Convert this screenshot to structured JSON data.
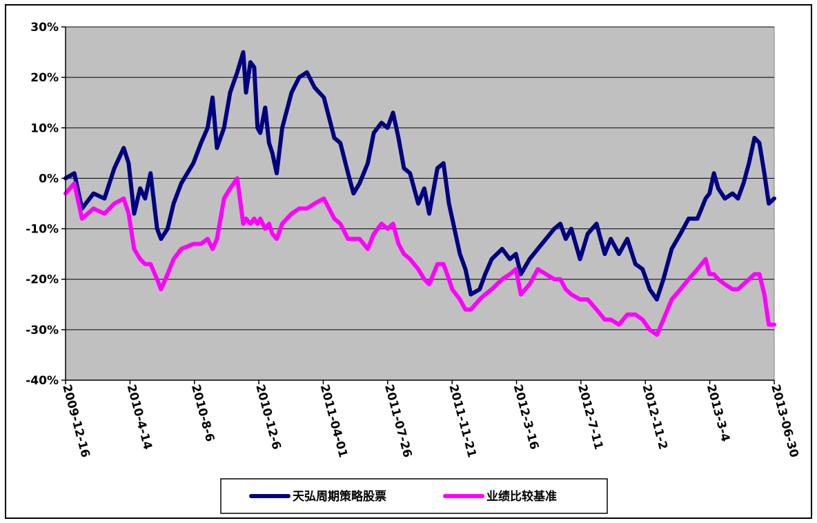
{
  "chart_data": {
    "type": "line",
    "title": "",
    "xlabel": "",
    "ylabel": "",
    "ylim": [
      -40,
      30
    ],
    "y_ticks": [
      "30%",
      "20%",
      "10%",
      "0%",
      "-10%",
      "-20%",
      "-30%",
      "-40%"
    ],
    "y_tick_values": [
      30,
      20,
      10,
      0,
      -10,
      -20,
      -30,
      -40
    ],
    "x_tick_labels": [
      "2009-12-16",
      "2010-4-14",
      "2010-8-6",
      "2010-12-6",
      "2011-04-01",
      "2011-07-26",
      "2011-11-21",
      "2012-3-16",
      "2012-7-11",
      "2012-11-2",
      "2013-3-4",
      "2013-06-30"
    ],
    "grid": "horizontal",
    "legend_position": "bottom",
    "plot_background": "#C0C0C0",
    "series": [
      {
        "name": "天弘周期策略股票",
        "color": "#000080",
        "points": [
          [
            "2009-12-16",
            0
          ],
          [
            "2010-01-01",
            1
          ],
          [
            "2010-01-15",
            -6
          ],
          [
            "2010-02-05",
            -3
          ],
          [
            "2010-02-25",
            -4
          ],
          [
            "2010-03-15",
            2
          ],
          [
            "2010-04-01",
            6
          ],
          [
            "2010-04-10",
            3
          ],
          [
            "2010-04-20",
            -7
          ],
          [
            "2010-05-01",
            -2
          ],
          [
            "2010-05-10",
            -4
          ],
          [
            "2010-05-20",
            1
          ],
          [
            "2010-06-01",
            -10
          ],
          [
            "2010-06-08",
            -12
          ],
          [
            "2010-06-20",
            -10
          ],
          [
            "2010-07-01",
            -5
          ],
          [
            "2010-07-15",
            -1
          ],
          [
            "2010-08-06",
            3
          ],
          [
            "2010-08-20",
            7
          ],
          [
            "2010-09-01",
            10
          ],
          [
            "2010-09-10",
            16
          ],
          [
            "2010-09-18",
            6
          ],
          [
            "2010-10-01",
            10
          ],
          [
            "2010-10-12",
            17
          ],
          [
            "2010-10-25",
            21
          ],
          [
            "2010-11-05",
            25
          ],
          [
            "2010-11-10",
            17
          ],
          [
            "2010-11-18",
            23
          ],
          [
            "2010-11-25",
            22
          ],
          [
            "2010-12-01",
            10
          ],
          [
            "2010-12-06",
            9
          ],
          [
            "2010-12-15",
            14
          ],
          [
            "2010-12-22",
            7
          ],
          [
            "2010-12-28",
            5
          ],
          [
            "2011-01-05",
            1
          ],
          [
            "2011-01-15",
            10
          ],
          [
            "2011-02-01",
            17
          ],
          [
            "2011-02-15",
            20
          ],
          [
            "2011-03-01",
            21
          ],
          [
            "2011-03-15",
            18
          ],
          [
            "2011-04-01",
            16
          ],
          [
            "2011-04-20",
            8
          ],
          [
            "2011-05-01",
            7
          ],
          [
            "2011-05-15",
            1
          ],
          [
            "2011-05-25",
            -3
          ],
          [
            "2011-06-05",
            -1
          ],
          [
            "2011-06-20",
            3
          ],
          [
            "2011-07-01",
            9
          ],
          [
            "2011-07-15",
            11
          ],
          [
            "2011-07-26",
            10
          ],
          [
            "2011-08-05",
            13
          ],
          [
            "2011-08-15",
            8
          ],
          [
            "2011-08-25",
            2
          ],
          [
            "2011-09-05",
            1
          ],
          [
            "2011-09-20",
            -5
          ],
          [
            "2011-10-01",
            -2
          ],
          [
            "2011-10-10",
            -7
          ],
          [
            "2011-10-25",
            2
          ],
          [
            "2011-11-05",
            3
          ],
          [
            "2011-11-15",
            -5
          ],
          [
            "2011-11-21",
            -8
          ],
          [
            "2011-12-05",
            -15
          ],
          [
            "2011-12-15",
            -18
          ],
          [
            "2011-12-25",
            -23
          ],
          [
            "2012-01-10",
            -22
          ],
          [
            "2012-01-20",
            -19
          ],
          [
            "2012-02-01",
            -16
          ],
          [
            "2012-02-20",
            -14
          ],
          [
            "2012-03-05",
            -16
          ],
          [
            "2012-03-16",
            -15
          ],
          [
            "2012-03-25",
            -19
          ],
          [
            "2012-04-10",
            -16
          ],
          [
            "2012-04-25",
            -14
          ],
          [
            "2012-05-10",
            -12
          ],
          [
            "2012-05-25",
            -10
          ],
          [
            "2012-06-05",
            -9
          ],
          [
            "2012-06-15",
            -12
          ],
          [
            "2012-06-25",
            -10
          ],
          [
            "2012-07-11",
            -16
          ],
          [
            "2012-07-25",
            -11
          ],
          [
            "2012-08-10",
            -9
          ],
          [
            "2012-08-25",
            -15
          ],
          [
            "2012-09-05",
            -12
          ],
          [
            "2012-09-20",
            -15
          ],
          [
            "2012-10-05",
            -12
          ],
          [
            "2012-10-20",
            -17
          ],
          [
            "2012-11-02",
            -18
          ],
          [
            "2012-11-15",
            -22
          ],
          [
            "2012-11-28",
            -24
          ],
          [
            "2012-12-10",
            -20
          ],
          [
            "2012-12-25",
            -14
          ],
          [
            "2013-01-10",
            -11
          ],
          [
            "2013-01-25",
            -8
          ],
          [
            "2013-02-10",
            -8
          ],
          [
            "2013-02-25",
            -4
          ],
          [
            "2013-03-04",
            -3
          ],
          [
            "2013-03-12",
            1
          ],
          [
            "2013-03-20",
            -2
          ],
          [
            "2013-04-01",
            -4
          ],
          [
            "2013-04-15",
            -3
          ],
          [
            "2013-04-25",
            -4
          ],
          [
            "2013-05-05",
            -1
          ],
          [
            "2013-05-15",
            3
          ],
          [
            "2013-05-25",
            8
          ],
          [
            "2013-06-03",
            7
          ],
          [
            "2013-06-12",
            1
          ],
          [
            "2013-06-20",
            -5
          ],
          [
            "2013-06-30",
            -4
          ]
        ]
      },
      {
        "name": "业绩比较基准",
        "color": "#FF00FF",
        "points": [
          [
            "2009-12-16",
            -3
          ],
          [
            "2010-01-01",
            -1
          ],
          [
            "2010-01-15",
            -8
          ],
          [
            "2010-02-05",
            -6
          ],
          [
            "2010-02-25",
            -7
          ],
          [
            "2010-03-15",
            -5
          ],
          [
            "2010-04-01",
            -4
          ],
          [
            "2010-04-10",
            -7
          ],
          [
            "2010-04-20",
            -14
          ],
          [
            "2010-05-01",
            -16
          ],
          [
            "2010-05-10",
            -17
          ],
          [
            "2010-05-20",
            -17
          ],
          [
            "2010-06-01",
            -20
          ],
          [
            "2010-06-08",
            -22
          ],
          [
            "2010-06-20",
            -19
          ],
          [
            "2010-07-01",
            -16
          ],
          [
            "2010-07-15",
            -14
          ],
          [
            "2010-08-06",
            -13
          ],
          [
            "2010-08-20",
            -13
          ],
          [
            "2010-09-01",
            -12
          ],
          [
            "2010-09-10",
            -14
          ],
          [
            "2010-09-18",
            -12
          ],
          [
            "2010-10-01",
            -4
          ],
          [
            "2010-10-12",
            -2
          ],
          [
            "2010-10-25",
            0
          ],
          [
            "2010-11-05",
            -9
          ],
          [
            "2010-11-10",
            -8
          ],
          [
            "2010-11-18",
            -9
          ],
          [
            "2010-11-25",
            -8
          ],
          [
            "2010-12-01",
            -9
          ],
          [
            "2010-12-06",
            -8
          ],
          [
            "2010-12-15",
            -10
          ],
          [
            "2010-12-22",
            -9
          ],
          [
            "2010-12-28",
            -11
          ],
          [
            "2011-01-05",
            -12
          ],
          [
            "2011-01-15",
            -9
          ],
          [
            "2011-02-01",
            -7
          ],
          [
            "2011-02-15",
            -6
          ],
          [
            "2011-03-01",
            -6
          ],
          [
            "2011-03-15",
            -5
          ],
          [
            "2011-04-01",
            -4
          ],
          [
            "2011-04-20",
            -8
          ],
          [
            "2011-05-01",
            -9
          ],
          [
            "2011-05-15",
            -12
          ],
          [
            "2011-05-25",
            -12
          ],
          [
            "2011-06-05",
            -12
          ],
          [
            "2011-06-20",
            -14
          ],
          [
            "2011-07-01",
            -11
          ],
          [
            "2011-07-15",
            -9
          ],
          [
            "2011-07-26",
            -10
          ],
          [
            "2011-08-05",
            -9
          ],
          [
            "2011-08-15",
            -13
          ],
          [
            "2011-08-25",
            -15
          ],
          [
            "2011-09-05",
            -16
          ],
          [
            "2011-09-20",
            -18
          ],
          [
            "2011-10-01",
            -20
          ],
          [
            "2011-10-10",
            -21
          ],
          [
            "2011-10-25",
            -17
          ],
          [
            "2011-11-05",
            -17
          ],
          [
            "2011-11-15",
            -20
          ],
          [
            "2011-11-21",
            -22
          ],
          [
            "2011-12-05",
            -24
          ],
          [
            "2011-12-15",
            -26
          ],
          [
            "2011-12-25",
            -26
          ],
          [
            "2012-01-10",
            -24
          ],
          [
            "2012-01-20",
            -23
          ],
          [
            "2012-02-01",
            -22
          ],
          [
            "2012-02-20",
            -20
          ],
          [
            "2012-03-05",
            -19
          ],
          [
            "2012-03-16",
            -18
          ],
          [
            "2012-03-25",
            -23
          ],
          [
            "2012-04-10",
            -21
          ],
          [
            "2012-04-25",
            -18
          ],
          [
            "2012-05-10",
            -19
          ],
          [
            "2012-05-25",
            -20
          ],
          [
            "2012-06-05",
            -20
          ],
          [
            "2012-06-15",
            -22
          ],
          [
            "2012-06-25",
            -23
          ],
          [
            "2012-07-11",
            -24
          ],
          [
            "2012-07-25",
            -24
          ],
          [
            "2012-08-10",
            -26
          ],
          [
            "2012-08-25",
            -28
          ],
          [
            "2012-09-05",
            -28
          ],
          [
            "2012-09-20",
            -29
          ],
          [
            "2012-10-05",
            -27
          ],
          [
            "2012-10-20",
            -27
          ],
          [
            "2012-11-02",
            -28
          ],
          [
            "2012-11-15",
            -30
          ],
          [
            "2012-11-28",
            -31
          ],
          [
            "2012-12-10",
            -28
          ],
          [
            "2012-12-25",
            -24
          ],
          [
            "2013-01-10",
            -22
          ],
          [
            "2013-01-25",
            -20
          ],
          [
            "2013-02-10",
            -18
          ],
          [
            "2013-02-25",
            -16
          ],
          [
            "2013-03-04",
            -19
          ],
          [
            "2013-03-12",
            -19
          ],
          [
            "2013-03-20",
            -20
          ],
          [
            "2013-04-01",
            -21
          ],
          [
            "2013-04-15",
            -22
          ],
          [
            "2013-04-25",
            -22
          ],
          [
            "2013-05-05",
            -21
          ],
          [
            "2013-05-15",
            -20
          ],
          [
            "2013-05-25",
            -19
          ],
          [
            "2013-06-03",
            -19
          ],
          [
            "2013-06-12",
            -23
          ],
          [
            "2013-06-20",
            -29
          ],
          [
            "2013-06-30",
            -29
          ]
        ]
      }
    ]
  }
}
